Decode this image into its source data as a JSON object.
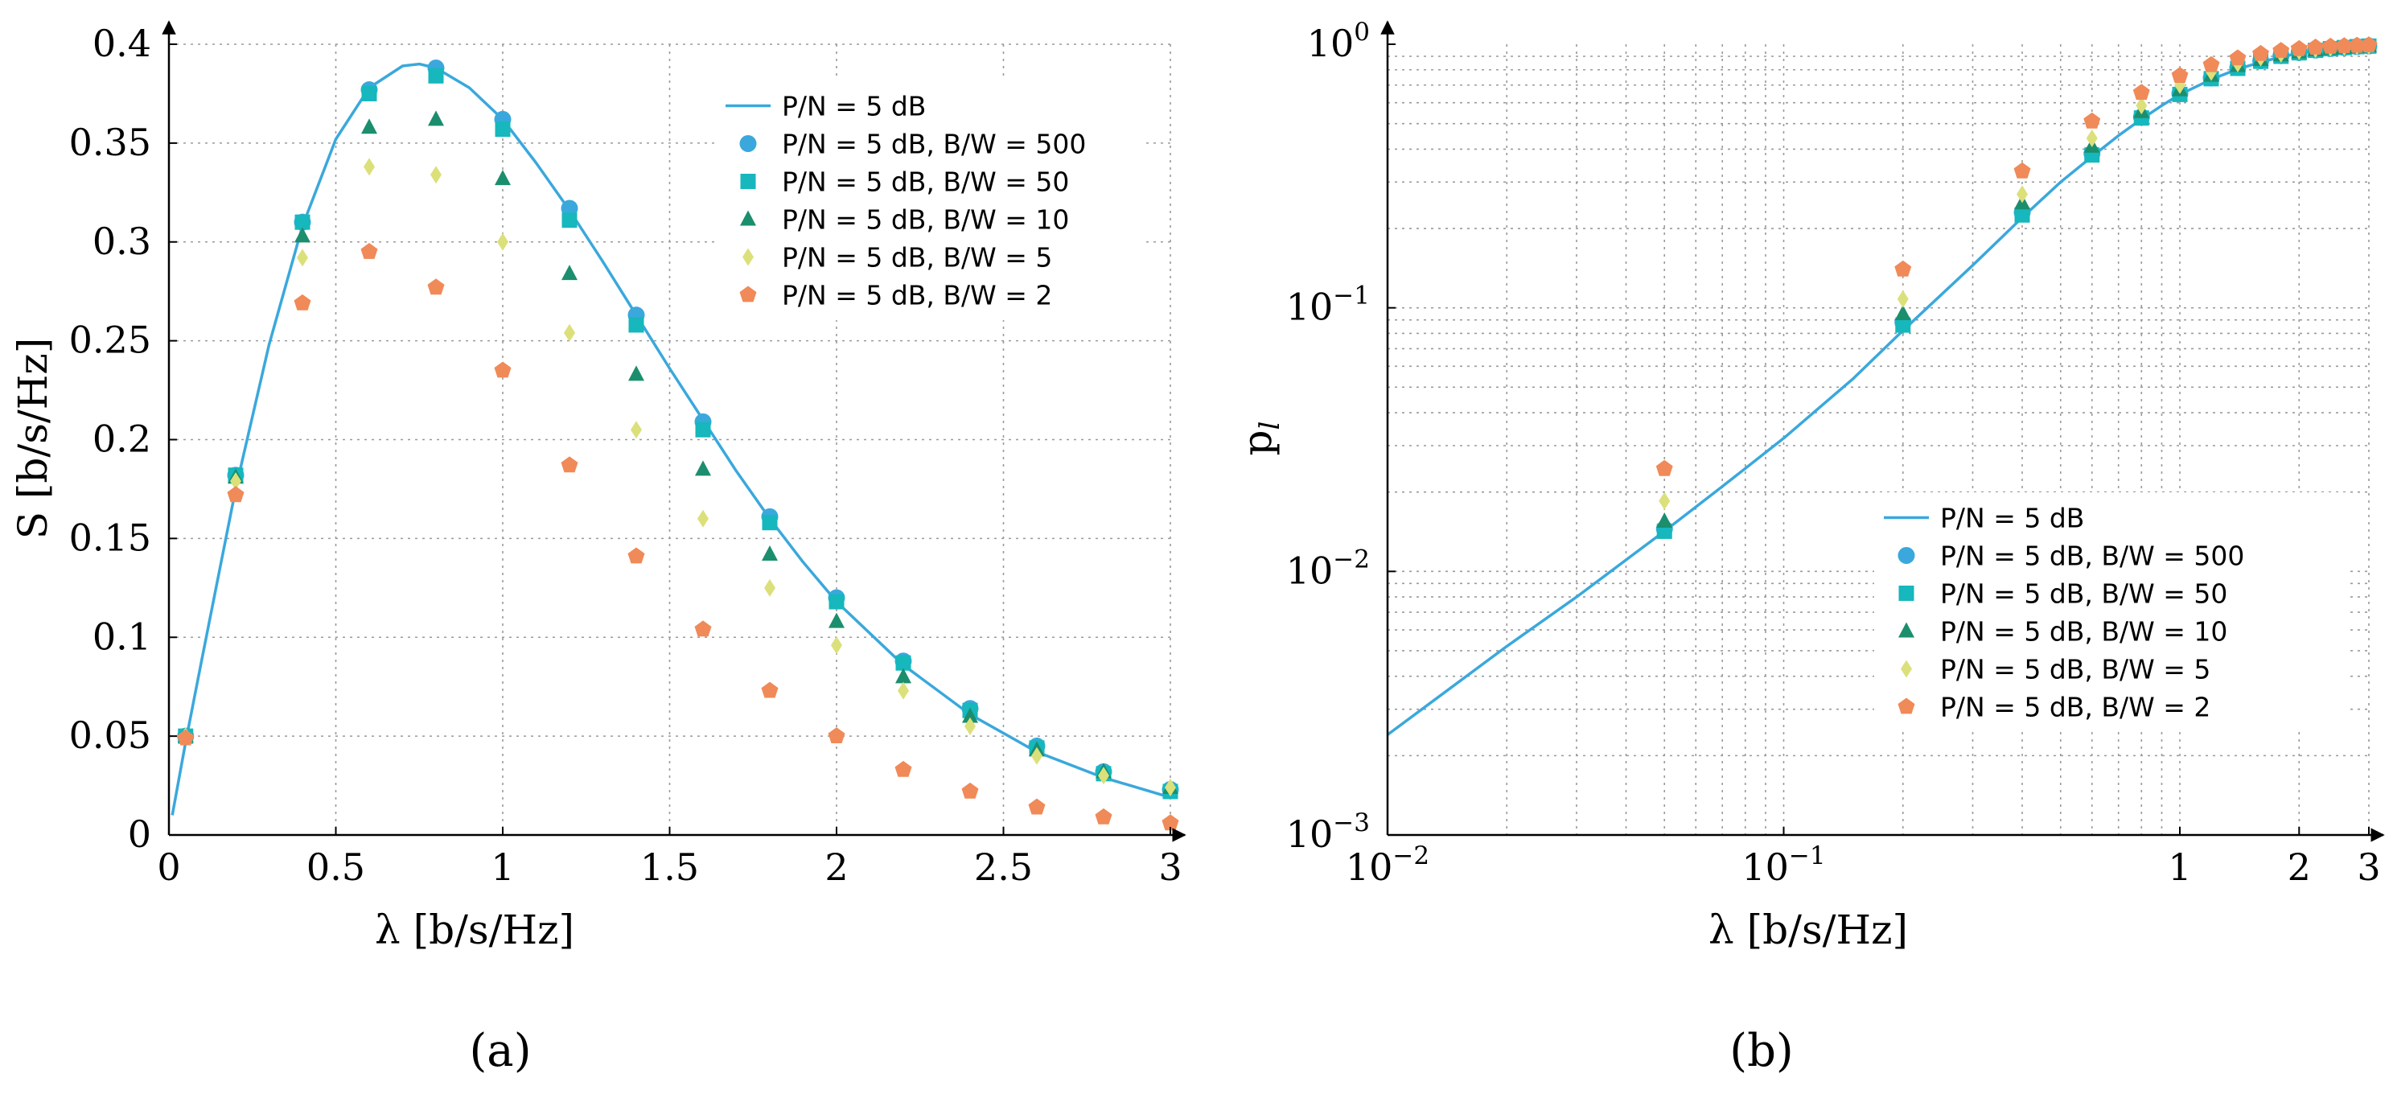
{
  "chart_data": [
    {
      "id": "a",
      "type": "line",
      "subplot_label": "(a)",
      "xlabel": "λ [b/s/Hz]",
      "ylabel": "S [b/s/Hz]",
      "xlim": [
        0,
        3
      ],
      "ylim": [
        0,
        0.4
      ],
      "x_ticks": [
        0,
        0.5,
        1,
        1.5,
        2,
        2.5,
        3
      ],
      "x_tick_labels": [
        "0",
        "0.5",
        "1",
        "1.5",
        "2",
        "2.5",
        "3"
      ],
      "y_ticks": [
        0,
        0.05,
        0.1,
        0.15,
        0.2,
        0.25,
        0.3,
        0.35,
        0.4
      ],
      "y_tick_labels": [
        "0",
        "0.05",
        "0.1",
        "0.15",
        "0.2",
        "0.25",
        "0.3",
        "0.35",
        "0.4"
      ],
      "grid": true,
      "legend_position": "top-right",
      "series": [
        {
          "name": "P/N = 5 dB",
          "kind": "line",
          "color": "#3aa8dc",
          "x": [
            0.01,
            0.05,
            0.1,
            0.2,
            0.3,
            0.4,
            0.5,
            0.6,
            0.7,
            0.75,
            0.8,
            0.9,
            1.0,
            1.1,
            1.2,
            1.3,
            1.4,
            1.5,
            1.6,
            1.7,
            1.8,
            1.9,
            2.0,
            2.2,
            2.4,
            2.6,
            2.8,
            3.0
          ],
          "y": [
            0.01,
            0.047,
            0.09,
            0.175,
            0.248,
            0.308,
            0.352,
            0.378,
            0.389,
            0.39,
            0.388,
            0.378,
            0.362,
            0.34,
            0.316,
            0.29,
            0.263,
            0.236,
            0.21,
            0.184,
            0.16,
            0.138,
            0.118,
            0.086,
            0.061,
            0.042,
            0.029,
            0.019
          ]
        },
        {
          "name": "P/N = 5 dB, B/W = 500",
          "kind": "marker",
          "marker": "circle",
          "color": "#3aa8dc",
          "x": [
            0.05,
            0.2,
            0.4,
            0.6,
            0.8,
            1.0,
            1.2,
            1.4,
            1.6,
            1.8,
            2.0,
            2.2,
            2.4,
            2.6,
            2.8,
            3.0
          ],
          "y": [
            0.05,
            0.182,
            0.31,
            0.377,
            0.388,
            0.362,
            0.317,
            0.263,
            0.209,
            0.161,
            0.12,
            0.088,
            0.064,
            0.045,
            0.032,
            0.023
          ]
        },
        {
          "name": "P/N = 5 dB, B/W = 50",
          "kind": "marker",
          "marker": "square",
          "color": "#16b7bd",
          "x": [
            0.05,
            0.2,
            0.4,
            0.6,
            0.8,
            1.0,
            1.2,
            1.4,
            1.6,
            1.8,
            2.0,
            2.2,
            2.4,
            2.6,
            2.8,
            3.0
          ],
          "y": [
            0.05,
            0.182,
            0.31,
            0.375,
            0.384,
            0.357,
            0.311,
            0.258,
            0.205,
            0.158,
            0.118,
            0.087,
            0.063,
            0.044,
            0.031,
            0.022
          ]
        },
        {
          "name": "P/N = 5 dB, B/W = 10",
          "kind": "marker",
          "marker": "triangle",
          "color": "#1b8e6e",
          "x": [
            0.05,
            0.2,
            0.4,
            0.6,
            0.8,
            1.0,
            1.2,
            1.4,
            1.6,
            1.8,
            2.0,
            2.2,
            2.4,
            2.6,
            2.8,
            3.0
          ],
          "y": [
            0.05,
            0.181,
            0.303,
            0.358,
            0.362,
            0.332,
            0.284,
            0.233,
            0.185,
            0.142,
            0.108,
            0.08,
            0.06,
            0.043,
            0.032,
            0.024
          ]
        },
        {
          "name": "P/N = 5 dB, B/W = 5",
          "kind": "marker",
          "marker": "diamond",
          "color": "#dbe07a",
          "x": [
            0.05,
            0.2,
            0.4,
            0.6,
            0.8,
            1.0,
            1.2,
            1.4,
            1.6,
            1.8,
            2.0,
            2.2,
            2.4,
            2.6,
            2.8,
            3.0
          ],
          "y": [
            0.05,
            0.179,
            0.292,
            0.338,
            0.334,
            0.3,
            0.254,
            0.205,
            0.16,
            0.125,
            0.096,
            0.073,
            0.055,
            0.04,
            0.03,
            0.024
          ]
        },
        {
          "name": "P/N = 5 dB, B/W = 2",
          "kind": "marker",
          "marker": "pentagon",
          "color": "#f08a58",
          "x": [
            0.05,
            0.2,
            0.4,
            0.6,
            0.8,
            1.0,
            1.2,
            1.4,
            1.6,
            1.8,
            2.0,
            2.2,
            2.4,
            2.6,
            2.8,
            3.0
          ],
          "y": [
            0.049,
            0.172,
            0.269,
            0.295,
            0.277,
            0.235,
            0.187,
            0.141,
            0.104,
            0.073,
            0.05,
            0.033,
            0.022,
            0.014,
            0.009,
            0.006
          ]
        }
      ]
    },
    {
      "id": "b",
      "type": "line",
      "subplot_label": "(b)",
      "xlabel": "λ [b/s/Hz]",
      "ylabel": "p_l",
      "x_scale": "log",
      "y_scale": "log",
      "xlim": [
        0.01,
        3
      ],
      "ylim": [
        0.001,
        1
      ],
      "x_ticks": [
        0.01,
        0.1,
        1,
        2,
        3
      ],
      "x_tick_labels": [
        {
          "base": "10",
          "exp": "−2"
        },
        {
          "base": "10",
          "exp": "−1"
        },
        {
          "base": "1",
          "exp": ""
        },
        {
          "base": "2",
          "exp": ""
        },
        {
          "base": "3",
          "exp": ""
        }
      ],
      "y_ticks": [
        0.001,
        0.01,
        0.1,
        1
      ],
      "y_tick_labels": [
        {
          "base": "10",
          "exp": "−3"
        },
        {
          "base": "10",
          "exp": "−2"
        },
        {
          "base": "10",
          "exp": "−1"
        },
        {
          "base": "10",
          "exp": "0"
        }
      ],
      "grid": true,
      "legend_position": "center-right",
      "series": [
        {
          "name": "P/N = 5 dB",
          "kind": "line",
          "color": "#3aa8dc",
          "x": [
            0.01,
            0.02,
            0.03,
            0.05,
            0.07,
            0.1,
            0.15,
            0.2,
            0.3,
            0.4,
            0.5,
            0.6,
            0.7,
            0.8,
            0.9,
            1.0,
            1.2,
            1.4,
            1.6,
            1.8,
            2.0,
            2.2,
            2.4,
            2.6,
            2.8,
            3.0
          ],
          "y": [
            0.0024,
            0.0052,
            0.008,
            0.0142,
            0.021,
            0.032,
            0.054,
            0.082,
            0.145,
            0.22,
            0.3,
            0.375,
            0.45,
            0.52,
            0.585,
            0.645,
            0.735,
            0.805,
            0.855,
            0.895,
            0.925,
            0.945,
            0.96,
            0.97,
            0.978,
            0.984
          ]
        },
        {
          "name": "P/N = 5 dB, B/W = 500",
          "kind": "marker",
          "marker": "circle",
          "color": "#3aa8dc",
          "x": [
            0.05,
            0.2,
            0.4,
            0.6,
            0.8,
            1.0,
            1.2,
            1.4,
            1.6,
            1.8,
            2.0,
            2.2,
            2.4,
            2.6,
            2.8,
            3.0
          ],
          "y": [
            0.0145,
            0.088,
            0.23,
            0.385,
            0.53,
            0.65,
            0.745,
            0.815,
            0.865,
            0.905,
            0.93,
            0.95,
            0.963,
            0.972,
            0.98,
            0.985
          ]
        },
        {
          "name": "P/N = 5 dB, B/W = 50",
          "kind": "marker",
          "marker": "square",
          "color": "#16b7bd",
          "x": [
            0.05,
            0.2,
            0.4,
            0.6,
            0.8,
            1.0,
            1.2,
            1.4,
            1.6,
            1.8,
            2.0,
            2.2,
            2.4,
            2.6,
            2.8,
            3.0
          ],
          "y": [
            0.0142,
            0.086,
            0.225,
            0.38,
            0.525,
            0.645,
            0.74,
            0.81,
            0.862,
            0.9,
            0.928,
            0.948,
            0.962,
            0.971,
            0.979,
            0.984
          ]
        },
        {
          "name": "P/N = 5 dB, B/W = 10",
          "kind": "marker",
          "marker": "triangle",
          "color": "#1b8e6e",
          "x": [
            0.05,
            0.2,
            0.4,
            0.6,
            0.8,
            1.0,
            1.2,
            1.4,
            1.6,
            1.8,
            2.0,
            2.2,
            2.4,
            2.6,
            2.8,
            3.0
          ],
          "y": [
            0.0155,
            0.095,
            0.25,
            0.41,
            0.555,
            0.672,
            0.762,
            0.83,
            0.875,
            0.91,
            0.935,
            0.953,
            0.965,
            0.974,
            0.981,
            0.986
          ]
        },
        {
          "name": "P/N = 5 dB, B/W = 5",
          "kind": "marker",
          "marker": "diamond",
          "color": "#dbe07a",
          "x": [
            0.05,
            0.2,
            0.4,
            0.6,
            0.8,
            1.0,
            1.2,
            1.4,
            1.6,
            1.8,
            2.0,
            2.2,
            2.4,
            2.6,
            2.8,
            3.0
          ],
          "y": [
            0.0185,
            0.108,
            0.27,
            0.44,
            0.585,
            0.7,
            0.785,
            0.845,
            0.89,
            0.92,
            0.942,
            0.958,
            0.969,
            0.977,
            0.983,
            0.987
          ]
        },
        {
          "name": "P/N = 5 dB, B/W = 2",
          "kind": "marker",
          "marker": "pentagon",
          "color": "#f08a58",
          "x": [
            0.05,
            0.2,
            0.4,
            0.6,
            0.8,
            1.0,
            1.2,
            1.4,
            1.6,
            1.8,
            2.0,
            2.2,
            2.4,
            2.6,
            2.8,
            3.0
          ],
          "y": [
            0.0245,
            0.14,
            0.33,
            0.51,
            0.655,
            0.76,
            0.835,
            0.885,
            0.92,
            0.945,
            0.96,
            0.972,
            0.98,
            0.985,
            0.989,
            0.992
          ]
        }
      ]
    }
  ]
}
